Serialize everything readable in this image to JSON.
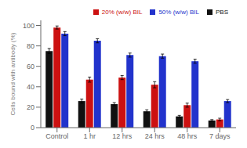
{
  "chart_data": {
    "type": "bar",
    "categories": [
      "Control",
      "1 hr",
      "12 hrs",
      "24 hrs",
      "48 hrs",
      "7 days"
    ],
    "series": [
      {
        "name": "PBS",
        "color": "#111111",
        "values": [
          75,
          26,
          23,
          16,
          11,
          7
        ],
        "errors": [
          2.5,
          2,
          1.5,
          1.5,
          1,
          0.8
        ]
      },
      {
        "name": "20% (w/w) BIL",
        "color": "#cc1111",
        "values": [
          98,
          47,
          49,
          42,
          22,
          8
        ],
        "errors": [
          1.5,
          2.5,
          2,
          3,
          2,
          1.2
        ]
      },
      {
        "name": "50% (w/w) BIL",
        "color": "#2233cc",
        "values": [
          92,
          85,
          71,
          70,
          65,
          26
        ],
        "errors": [
          2,
          2,
          2,
          2,
          2,
          1.5
        ]
      }
    ],
    "ylabel": "Cells bound with antibody (%)",
    "ylim": [
      0,
      105
    ],
    "yticks": [
      0,
      20,
      40,
      60,
      80,
      100
    ],
    "grid": false,
    "legend": "upper right"
  }
}
